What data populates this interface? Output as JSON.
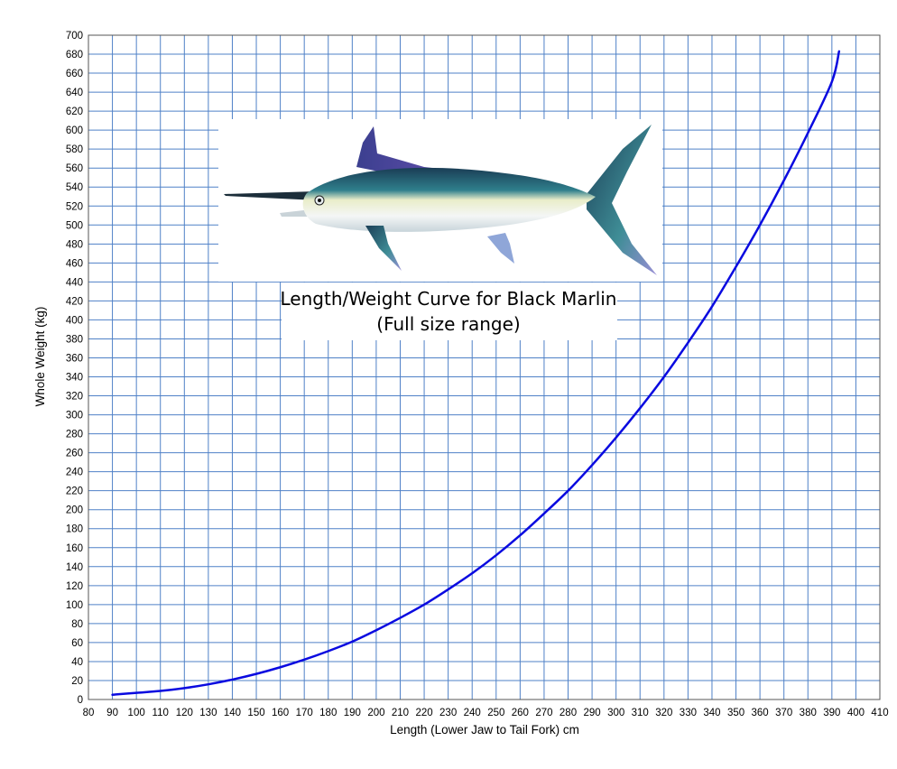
{
  "chart_data": {
    "type": "line",
    "title": "Length/Weight Curve for Black Marlin",
    "subtitle": "(Full size range)",
    "xlabel": "Length (Lower Jaw to Tail Fork) cm",
    "ylabel": "Whole Weight (kg)",
    "xlim": [
      80,
      410
    ],
    "ylim": [
      0,
      700
    ],
    "x_ticks": [
      80,
      90,
      100,
      110,
      120,
      130,
      140,
      150,
      160,
      170,
      180,
      190,
      200,
      210,
      220,
      230,
      240,
      250,
      260,
      270,
      280,
      290,
      300,
      310,
      320,
      330,
      340,
      350,
      360,
      370,
      380,
      390,
      400,
      410
    ],
    "y_ticks": [
      0,
      20,
      40,
      60,
      80,
      100,
      120,
      140,
      160,
      180,
      200,
      220,
      240,
      260,
      280,
      300,
      320,
      340,
      360,
      380,
      400,
      420,
      440,
      460,
      480,
      500,
      520,
      540,
      560,
      580,
      600,
      620,
      640,
      660,
      680,
      700
    ],
    "grid": true,
    "legend": "none",
    "series": [
      {
        "color": "#0a0ae0",
        "x": [
          90,
          100,
          110,
          120,
          130,
          140,
          150,
          160,
          170,
          180,
          190,
          200,
          210,
          220,
          230,
          240,
          250,
          260,
          270,
          280,
          290,
          300,
          310,
          320,
          330,
          340,
          350,
          360,
          370,
          380,
          390,
          393
        ],
        "y": [
          5,
          7,
          9,
          12,
          16,
          21,
          27,
          34,
          42,
          51,
          61,
          73,
          86,
          100,
          116,
          133,
          152,
          173,
          196,
          220,
          247,
          276,
          307,
          340,
          376,
          414,
          456,
          500,
          547,
          597,
          651,
          683
        ]
      }
    ],
    "grid_color": "#4f81c7",
    "image": "black-marlin-illustration"
  }
}
